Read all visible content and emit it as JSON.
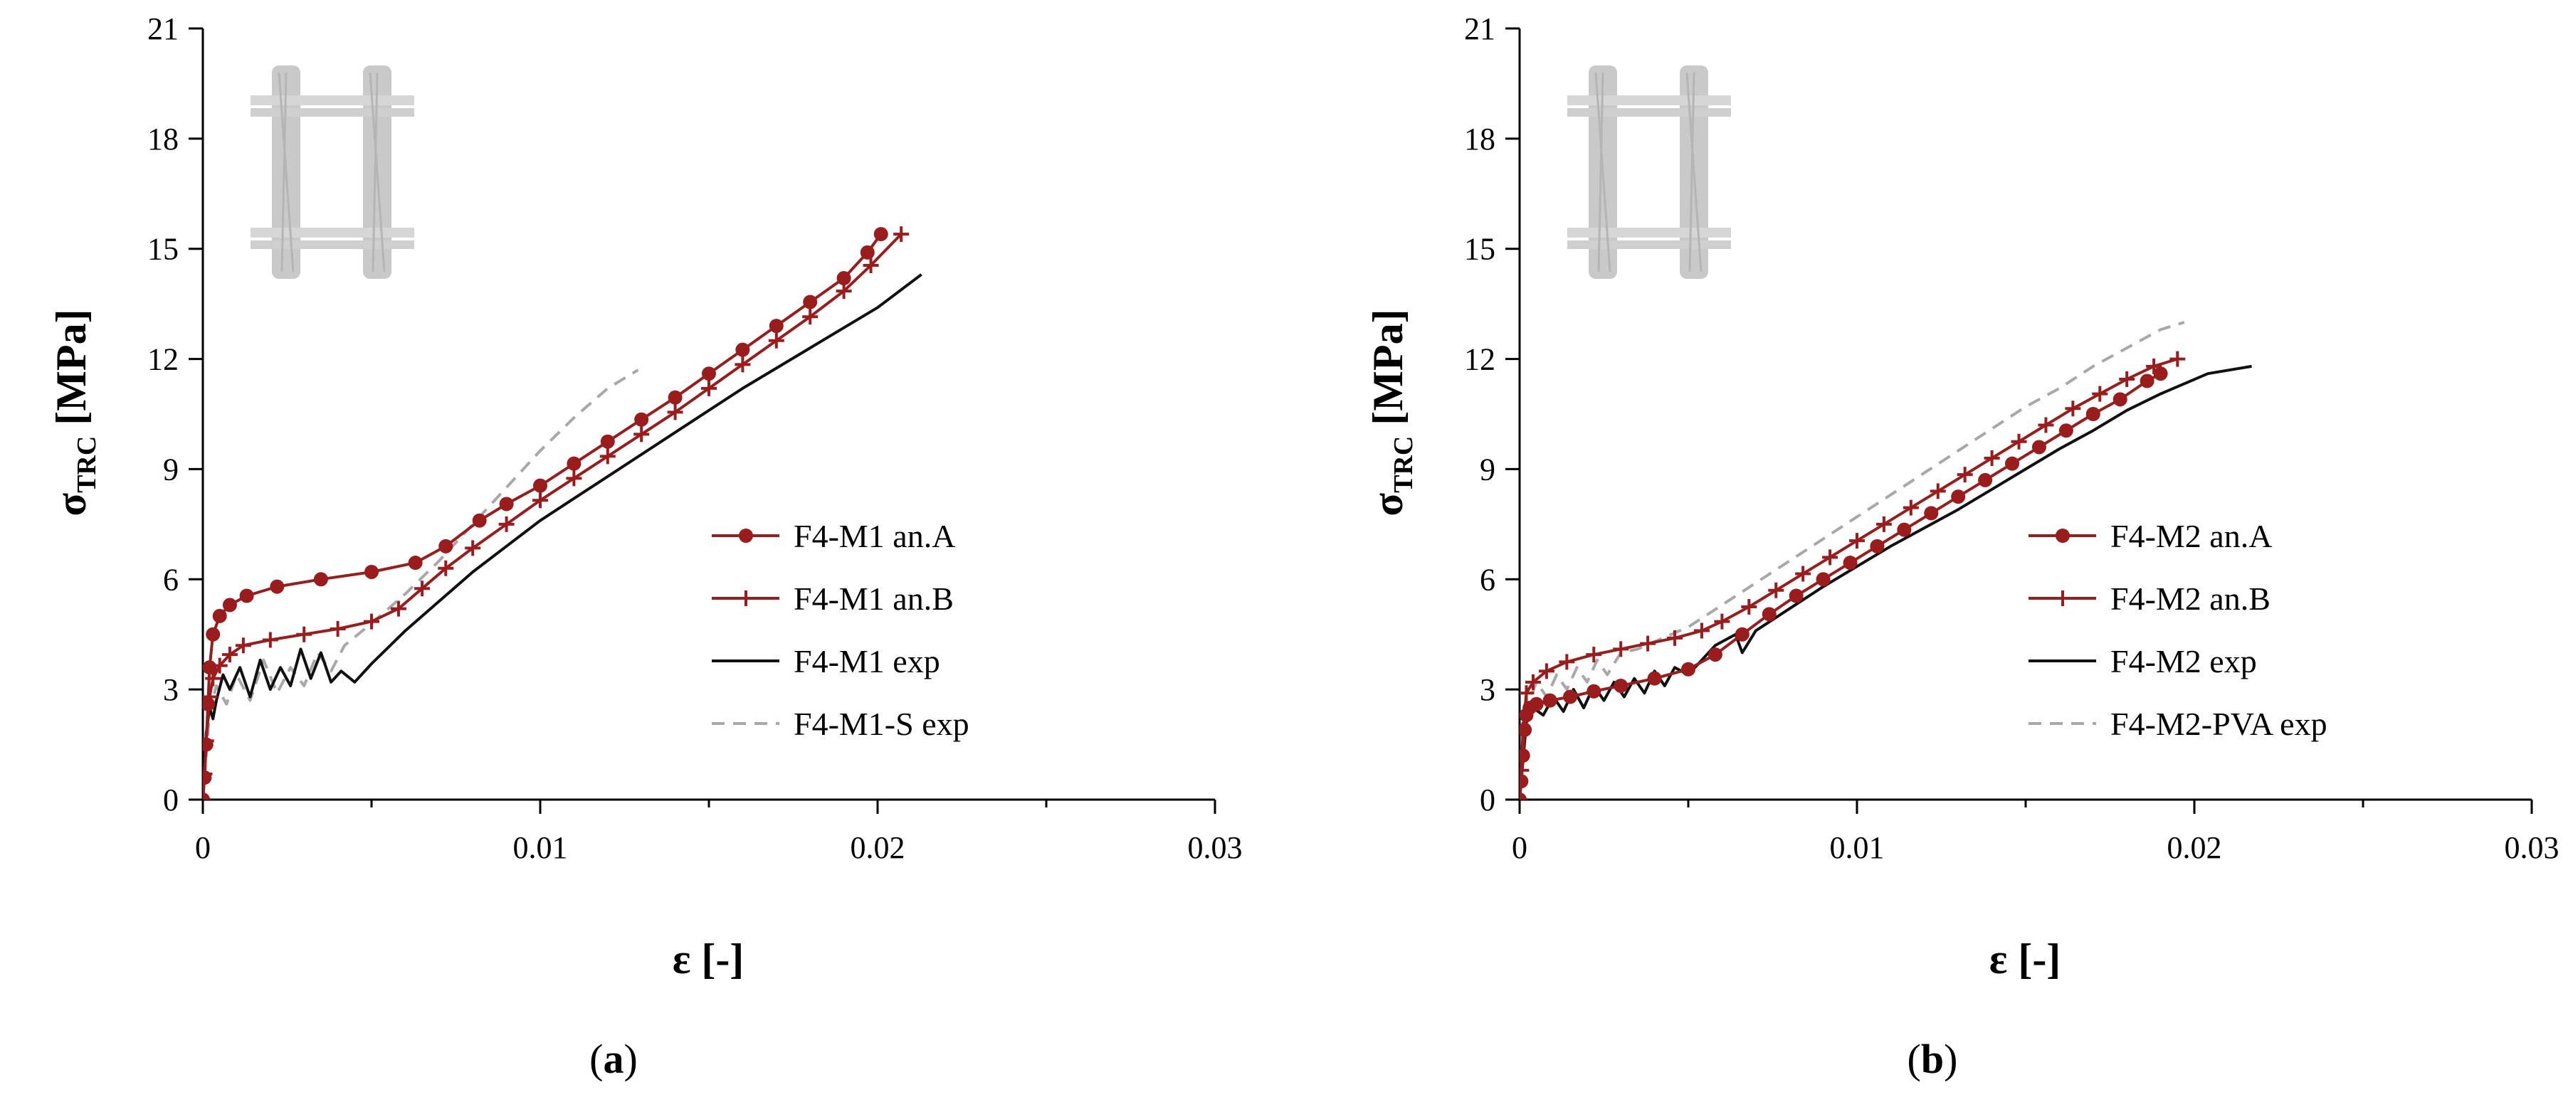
{
  "chart_data": [
    {
      "type": "line",
      "panel_label": "a",
      "xlabel": "ε [-]",
      "ylabel": "σ",
      "ylabel_sub": "TRC",
      "ylabel_unit": " [MPa]",
      "xlim": [
        0,
        0.03
      ],
      "ylim": [
        0,
        21
      ],
      "xticks": [
        0,
        0.01,
        0.02,
        0.03
      ],
      "xtick_labels": [
        "0",
        "0.01",
        "0.02",
        "0.03"
      ],
      "yticks": [
        0,
        3,
        6,
        9,
        12,
        15,
        18,
        21
      ],
      "ytick_labels": [
        "0",
        "3",
        "6",
        "9",
        "12",
        "15",
        "18",
        "21"
      ],
      "grid": false,
      "legend_position": "center-right",
      "inset_icon": "textile-mesh-icon",
      "series": [
        {
          "name": "F4-M1 an.A",
          "style": "solid-circle",
          "color": "#9b1c1c",
          "x": [
            0,
            5e-05,
            0.0001,
            0.00015,
            0.0002,
            0.0003,
            0.0005,
            0.0008,
            0.0013,
            0.0022,
            0.0035,
            0.005,
            0.0063,
            0.0072,
            0.0082,
            0.009,
            0.01,
            0.011,
            0.012,
            0.013,
            0.014,
            0.015,
            0.016,
            0.017,
            0.018,
            0.019,
            0.0197,
            0.0201
          ],
          "y": [
            0,
            0.6,
            1.5,
            2.6,
            3.6,
            4.5,
            5.0,
            5.3,
            5.55,
            5.8,
            6.0,
            6.2,
            6.45,
            6.9,
            7.6,
            8.05,
            8.55,
            9.15,
            9.75,
            10.35,
            10.95,
            11.6,
            12.25,
            12.9,
            13.55,
            14.2,
            14.9,
            15.4
          ]
        },
        {
          "name": "F4-M1 an.B",
          "style": "solid-plus",
          "color": "#9b1c1c",
          "x": [
            0,
            5e-05,
            0.0001,
            0.0002,
            0.0003,
            0.0005,
            0.0008,
            0.0012,
            0.002,
            0.003,
            0.004,
            0.005,
            0.0058,
            0.0065,
            0.0072,
            0.008,
            0.009,
            0.01,
            0.011,
            0.012,
            0.013,
            0.014,
            0.015,
            0.016,
            0.017,
            0.018,
            0.019,
            0.0198,
            0.0207
          ],
          "y": [
            0,
            0.7,
            1.6,
            2.8,
            3.3,
            3.65,
            3.95,
            4.2,
            4.35,
            4.5,
            4.65,
            4.85,
            5.2,
            5.75,
            6.3,
            6.85,
            7.5,
            8.15,
            8.75,
            9.35,
            9.95,
            10.55,
            11.2,
            11.85,
            12.5,
            13.15,
            13.85,
            14.55,
            15.4
          ]
        },
        {
          "name": "F4-M1 exp",
          "style": "solid",
          "color": "#111111",
          "x": [
            0,
            0.0001,
            0.0002,
            0.0003,
            0.0004,
            0.0006,
            0.0008,
            0.0011,
            0.0014,
            0.0017,
            0.002,
            0.0023,
            0.0026,
            0.0029,
            0.0032,
            0.0035,
            0.0038,
            0.0041,
            0.0045,
            0.005,
            0.006,
            0.007,
            0.008,
            0.009,
            0.01,
            0.011,
            0.012,
            0.013,
            0.014,
            0.015,
            0.016,
            0.017,
            0.018,
            0.019,
            0.02,
            0.0213
          ],
          "y": [
            0,
            1.8,
            2.5,
            2.2,
            2.7,
            3.4,
            3.0,
            3.6,
            2.8,
            3.8,
            3.0,
            3.6,
            3.1,
            4.1,
            3.3,
            4.0,
            3.2,
            3.5,
            3.2,
            3.7,
            4.6,
            5.4,
            6.2,
            6.9,
            7.6,
            8.2,
            8.8,
            9.4,
            10.0,
            10.6,
            11.2,
            11.75,
            12.3,
            12.85,
            13.4,
            14.3
          ]
        },
        {
          "name": "F4-M1-S exp",
          "style": "dashed",
          "color": "#a8a8a8",
          "x": [
            0,
            0.0002,
            0.0004,
            0.0007,
            0.001,
            0.0014,
            0.0018,
            0.0022,
            0.0026,
            0.003,
            0.0034,
            0.0038,
            0.0042,
            0.005,
            0.006,
            0.007,
            0.008,
            0.009,
            0.01,
            0.011,
            0.012,
            0.0129
          ],
          "y": [
            0,
            2.4,
            3.1,
            2.6,
            3.4,
            2.7,
            3.8,
            2.9,
            3.6,
            3.1,
            4.0,
            3.5,
            4.2,
            4.8,
            5.6,
            6.5,
            7.5,
            8.5,
            9.5,
            10.4,
            11.2,
            11.7
          ]
        }
      ]
    },
    {
      "type": "line",
      "panel_label": "b",
      "xlabel": "ε [-]",
      "ylabel": "σ",
      "ylabel_sub": "TRC",
      "ylabel_unit": " [MPa]",
      "xlim": [
        0,
        0.03
      ],
      "ylim": [
        0,
        21
      ],
      "xticks": [
        0,
        0.01,
        0.02,
        0.03
      ],
      "xtick_labels": [
        "0",
        "0.01",
        "0.02",
        "0.03"
      ],
      "yticks": [
        0,
        3,
        6,
        9,
        12,
        15,
        18,
        21
      ],
      "ytick_labels": [
        "0",
        "3",
        "6",
        "9",
        "12",
        "15",
        "18",
        "21"
      ],
      "grid": false,
      "legend_position": "center-right",
      "inset_icon": "textile-mesh-icon",
      "series": [
        {
          "name": "F4-M2 an.A",
          "style": "solid-circle",
          "color": "#9b1c1c",
          "x": [
            0,
            5e-05,
            0.0001,
            0.00015,
            0.0002,
            0.0003,
            0.0005,
            0.0009,
            0.0015,
            0.0022,
            0.003,
            0.004,
            0.005,
            0.0058,
            0.0066,
            0.0074,
            0.0082,
            0.009,
            0.0098,
            0.0106,
            0.0114,
            0.0122,
            0.013,
            0.0138,
            0.0146,
            0.0154,
            0.0162,
            0.017,
            0.0178,
            0.0186,
            0.019
          ],
          "y": [
            0,
            0.5,
            1.2,
            1.9,
            2.3,
            2.5,
            2.6,
            2.7,
            2.8,
            2.95,
            3.1,
            3.3,
            3.55,
            3.95,
            4.5,
            5.05,
            5.55,
            6.0,
            6.45,
            6.9,
            7.35,
            7.8,
            8.25,
            8.7,
            9.15,
            9.6,
            10.05,
            10.5,
            10.9,
            11.4,
            11.6
          ]
        },
        {
          "name": "F4-M2 an.B",
          "style": "solid-plus",
          "color": "#9b1c1c",
          "x": [
            0,
            5e-05,
            0.0001,
            0.0002,
            0.0004,
            0.0008,
            0.0014,
            0.0022,
            0.003,
            0.0038,
            0.0046,
            0.0054,
            0.006,
            0.0068,
            0.0076,
            0.0084,
            0.0092,
            0.01,
            0.0108,
            0.0116,
            0.0124,
            0.0132,
            0.014,
            0.0148,
            0.0156,
            0.0164,
            0.0172,
            0.018,
            0.0188,
            0.0195
          ],
          "y": [
            0,
            0.8,
            1.9,
            2.9,
            3.2,
            3.5,
            3.75,
            3.95,
            4.1,
            4.25,
            4.4,
            4.6,
            4.85,
            5.25,
            5.7,
            6.15,
            6.6,
            7.05,
            7.5,
            7.95,
            8.4,
            8.85,
            9.3,
            9.75,
            10.2,
            10.65,
            11.05,
            11.45,
            11.8,
            12.0
          ]
        },
        {
          "name": "F4-M2 exp",
          "style": "solid",
          "color": "#111111",
          "x": [
            0,
            0.0002,
            0.0004,
            0.0007,
            0.001,
            0.0013,
            0.0016,
            0.0019,
            0.0022,
            0.0025,
            0.0028,
            0.0031,
            0.0034,
            0.0037,
            0.004,
            0.0043,
            0.0046,
            0.005,
            0.0058,
            0.0064,
            0.0066,
            0.007,
            0.008,
            0.009,
            0.01,
            0.011,
            0.012,
            0.013,
            0.014,
            0.015,
            0.016,
            0.017,
            0.018,
            0.019,
            0.0204,
            0.0217
          ],
          "y": [
            0,
            2.1,
            2.5,
            2.3,
            2.8,
            2.4,
            3.0,
            2.5,
            3.1,
            2.7,
            3.2,
            2.8,
            3.3,
            2.9,
            3.5,
            3.1,
            3.6,
            3.4,
            4.2,
            4.5,
            4.0,
            4.6,
            5.2,
            5.8,
            6.35,
            6.9,
            7.4,
            7.9,
            8.45,
            9.0,
            9.55,
            10.05,
            10.6,
            11.05,
            11.6,
            11.8
          ]
        },
        {
          "name": "F4-M2-PVA exp",
          "style": "dashed",
          "color": "#a8a8a8",
          "x": [
            0,
            0.0002,
            0.0005,
            0.0008,
            0.0011,
            0.0014,
            0.0017,
            0.002,
            0.0023,
            0.0026,
            0.003,
            0.0035,
            0.004,
            0.005,
            0.006,
            0.007,
            0.008,
            0.009,
            0.01,
            0.011,
            0.012,
            0.013,
            0.014,
            0.015,
            0.016,
            0.017,
            0.018,
            0.019,
            0.0197
          ],
          "y": [
            0,
            2.5,
            3.2,
            2.8,
            3.4,
            3.0,
            3.6,
            3.2,
            3.8,
            3.4,
            4.0,
            4.1,
            4.3,
            4.7,
            5.3,
            5.9,
            6.5,
            7.1,
            7.7,
            8.3,
            8.9,
            9.5,
            10.1,
            10.7,
            11.2,
            11.8,
            12.3,
            12.8,
            13.0
          ]
        }
      ]
    }
  ]
}
